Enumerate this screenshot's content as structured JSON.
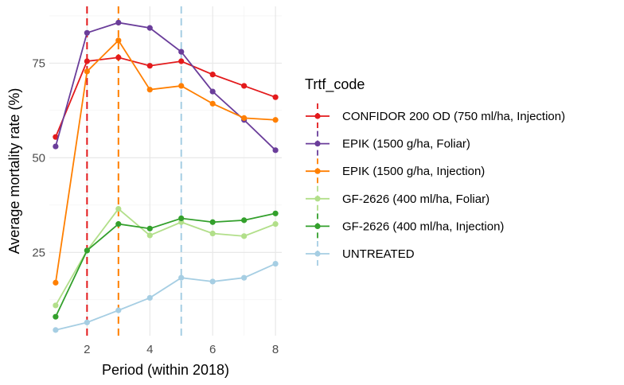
{
  "chart_data": {
    "type": "line",
    "xlabel": "Period (within 2018)",
    "ylabel": "Average mortality rate (%)",
    "xlim": [
      0.8,
      8.2
    ],
    "ylim": [
      3,
      90
    ],
    "x_ticks": [
      2,
      4,
      6,
      8
    ],
    "y_ticks": [
      25,
      50,
      75
    ],
    "grid": true,
    "legend_title": "Trtf_code",
    "legend_position": "right",
    "x": [
      1,
      2,
      3,
      4,
      5,
      6,
      7,
      8
    ],
    "series": [
      {
        "name": "CONFIDOR 200 OD (750 ml/ha, Injection)",
        "color": "#e31a1c",
        "values": [
          55.5,
          75.5,
          76.5,
          74.3,
          75.5,
          72.0,
          69.0,
          66.0
        ]
      },
      {
        "name": "EPIK (1500 g/ha, Foliar)",
        "color": "#6a3d9a",
        "values": [
          53.0,
          83.0,
          85.7,
          84.3,
          78.0,
          67.5,
          60.0,
          52.0
        ]
      },
      {
        "name": "EPIK (1500 g/ha, Injection)",
        "color": "#ff7f00",
        "values": [
          17.0,
          72.8,
          81.0,
          68.0,
          69.0,
          64.3,
          60.5,
          60.0
        ]
      },
      {
        "name": "GF-2626 (400 ml/ha, Foliar)",
        "color": "#b2df8a",
        "values": [
          11.0,
          25.5,
          36.5,
          29.5,
          33.0,
          30.0,
          29.3,
          32.5
        ]
      },
      {
        "name": "GF-2626 (400 ml/ha, Injection)",
        "color": "#33a02c",
        "values": [
          8.0,
          25.5,
          32.5,
          31.3,
          34.0,
          33.0,
          33.5,
          35.3
        ]
      },
      {
        "name": "UNTREATED",
        "color": "#a6cee3",
        "values": [
          4.5,
          6.5,
          9.7,
          13.0,
          18.3,
          17.3,
          18.3,
          22.0
        ]
      }
    ],
    "vlines": [
      {
        "x": 2,
        "color": "#e31a1c"
      },
      {
        "x": 3,
        "color": "#ff7f00"
      },
      {
        "x": 5,
        "color": "#a6cee3"
      }
    ]
  }
}
